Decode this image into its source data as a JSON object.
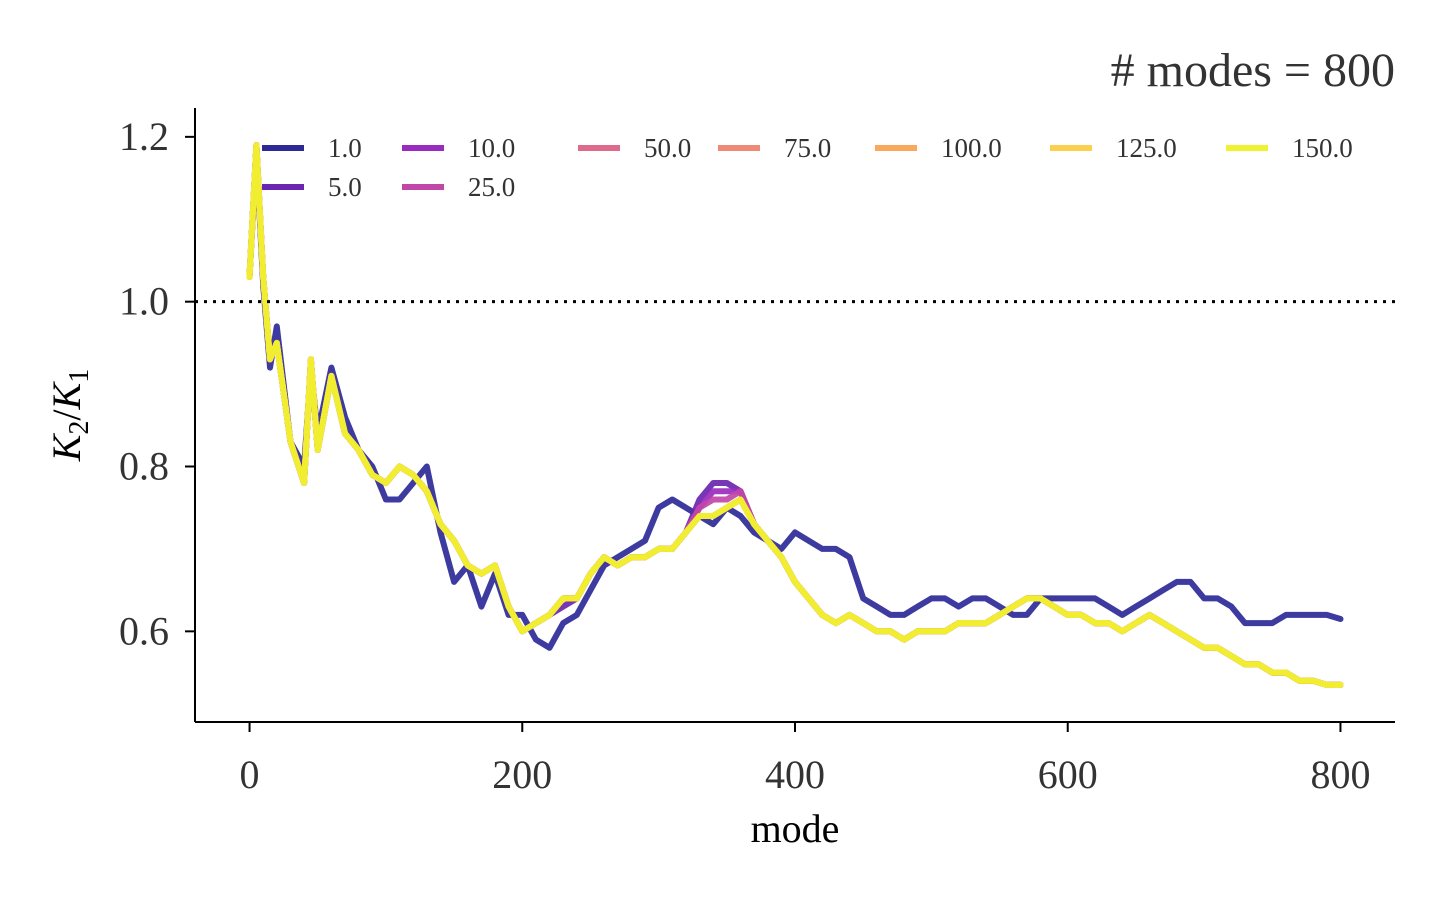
{
  "chart_data": {
    "type": "line",
    "title": "# modes = 800",
    "xlabel": "mode",
    "ylabel": "K_2/K_1",
    "ylabel_parts": {
      "k": "K",
      "sub2": "2",
      "slash": "/",
      "sub1": "1"
    },
    "xlim": [
      -40,
      840
    ],
    "ylim": [
      0.49,
      1.235
    ],
    "xticks": [
      0,
      200,
      400,
      600,
      800
    ],
    "xtick_labels": [
      "0",
      "200",
      "400",
      "600",
      "800"
    ],
    "yticks": [
      0.6,
      0.8,
      1.0,
      1.2
    ],
    "ytick_labels": [
      "0.6",
      "0.8",
      "1.0",
      "1.2"
    ],
    "reference_line": {
      "y": 1.0,
      "style": "dotted",
      "color": "#000000"
    },
    "legend_placement": "top, inside, 7 columns",
    "legend_columns": 7,
    "grid": false,
    "x": [
      0,
      5,
      10,
      15,
      20,
      30,
      40,
      45,
      50,
      60,
      70,
      80,
      90,
      100,
      110,
      120,
      130,
      140,
      150,
      160,
      170,
      180,
      190,
      200,
      210,
      220,
      230,
      240,
      250,
      260,
      270,
      280,
      290,
      300,
      310,
      320,
      330,
      340,
      350,
      360,
      370,
      380,
      390,
      400,
      410,
      420,
      430,
      440,
      450,
      460,
      470,
      480,
      490,
      500,
      510,
      520,
      530,
      540,
      550,
      560,
      570,
      580,
      590,
      600,
      610,
      620,
      630,
      640,
      650,
      660,
      670,
      680,
      690,
      700,
      710,
      720,
      730,
      740,
      750,
      760,
      770,
      780,
      790,
      800
    ],
    "series": [
      {
        "name": "1.0",
        "color": "#2d2a97",
        "values": [
          1.03,
          1.18,
          1.02,
          0.92,
          0.97,
          0.83,
          0.8,
          0.92,
          0.84,
          0.92,
          0.86,
          0.82,
          0.8,
          0.76,
          0.76,
          0.78,
          0.8,
          0.72,
          0.66,
          0.68,
          0.63,
          0.67,
          0.62,
          0.62,
          0.59,
          0.58,
          0.61,
          0.62,
          0.65,
          0.68,
          0.69,
          0.7,
          0.71,
          0.75,
          0.76,
          0.75,
          0.74,
          0.73,
          0.75,
          0.74,
          0.72,
          0.71,
          0.7,
          0.72,
          0.71,
          0.7,
          0.7,
          0.69,
          0.64,
          0.63,
          0.62,
          0.62,
          0.63,
          0.64,
          0.64,
          0.63,
          0.64,
          0.64,
          0.63,
          0.62,
          0.62,
          0.64,
          0.64,
          0.64,
          0.64,
          0.64,
          0.63,
          0.62,
          0.63,
          0.64,
          0.65,
          0.66,
          0.66,
          0.64,
          0.64,
          0.63,
          0.61,
          0.61,
          0.61,
          0.62,
          0.62,
          0.62,
          0.62,
          0.615
        ]
      },
      {
        "name": "5.0",
        "color": "#6a26b0",
        "values": [
          1.03,
          1.19,
          1.03,
          0.93,
          0.95,
          0.83,
          0.78,
          0.93,
          0.82,
          0.91,
          0.84,
          0.82,
          0.79,
          0.78,
          0.8,
          0.79,
          0.77,
          0.73,
          0.71,
          0.68,
          0.67,
          0.68,
          0.63,
          0.6,
          0.61,
          0.62,
          0.63,
          0.64,
          0.67,
          0.69,
          0.68,
          0.69,
          0.69,
          0.7,
          0.7,
          0.72,
          0.76,
          0.78,
          0.78,
          0.77,
          0.73,
          0.71,
          0.69,
          0.66,
          0.64,
          0.62,
          0.61,
          0.62,
          0.61,
          0.6,
          0.6,
          0.59,
          0.6,
          0.6,
          0.6,
          0.61,
          0.61,
          0.61,
          0.62,
          0.63,
          0.64,
          0.64,
          0.63,
          0.62,
          0.62,
          0.61,
          0.61,
          0.6,
          0.61,
          0.62,
          0.61,
          0.6,
          0.59,
          0.58,
          0.58,
          0.57,
          0.56,
          0.56,
          0.55,
          0.55,
          0.54,
          0.54,
          0.535,
          0.535
        ]
      },
      {
        "name": "10.0",
        "color": "#9a2bbf",
        "values": [
          1.03,
          1.19,
          1.03,
          0.93,
          0.95,
          0.83,
          0.78,
          0.93,
          0.82,
          0.91,
          0.84,
          0.82,
          0.79,
          0.78,
          0.8,
          0.79,
          0.77,
          0.73,
          0.71,
          0.68,
          0.67,
          0.68,
          0.63,
          0.6,
          0.61,
          0.62,
          0.64,
          0.64,
          0.67,
          0.69,
          0.68,
          0.69,
          0.69,
          0.7,
          0.7,
          0.72,
          0.75,
          0.77,
          0.77,
          0.77,
          0.73,
          0.71,
          0.69,
          0.66,
          0.64,
          0.62,
          0.61,
          0.62,
          0.61,
          0.6,
          0.6,
          0.59,
          0.6,
          0.6,
          0.6,
          0.61,
          0.61,
          0.61,
          0.62,
          0.63,
          0.64,
          0.64,
          0.63,
          0.62,
          0.62,
          0.61,
          0.61,
          0.6,
          0.61,
          0.62,
          0.61,
          0.6,
          0.59,
          0.58,
          0.58,
          0.57,
          0.56,
          0.56,
          0.55,
          0.55,
          0.54,
          0.54,
          0.535,
          0.535
        ]
      },
      {
        "name": "25.0",
        "color": "#c046a8",
        "values": [
          1.03,
          1.19,
          1.03,
          0.93,
          0.95,
          0.83,
          0.78,
          0.93,
          0.82,
          0.91,
          0.84,
          0.82,
          0.79,
          0.78,
          0.8,
          0.79,
          0.77,
          0.73,
          0.71,
          0.68,
          0.67,
          0.68,
          0.63,
          0.6,
          0.61,
          0.62,
          0.64,
          0.64,
          0.67,
          0.69,
          0.68,
          0.69,
          0.69,
          0.7,
          0.7,
          0.72,
          0.75,
          0.76,
          0.76,
          0.77,
          0.73,
          0.71,
          0.69,
          0.66,
          0.64,
          0.62,
          0.61,
          0.62,
          0.61,
          0.6,
          0.6,
          0.59,
          0.6,
          0.6,
          0.6,
          0.61,
          0.61,
          0.61,
          0.62,
          0.63,
          0.64,
          0.64,
          0.63,
          0.62,
          0.62,
          0.61,
          0.61,
          0.6,
          0.61,
          0.62,
          0.61,
          0.6,
          0.59,
          0.58,
          0.58,
          0.57,
          0.56,
          0.56,
          0.55,
          0.55,
          0.54,
          0.54,
          0.535,
          0.535
        ]
      },
      {
        "name": "50.0",
        "color": "#de6a8c",
        "values": [
          1.03,
          1.19,
          1.03,
          0.93,
          0.95,
          0.83,
          0.78,
          0.93,
          0.82,
          0.91,
          0.84,
          0.82,
          0.79,
          0.78,
          0.8,
          0.79,
          0.77,
          0.73,
          0.71,
          0.68,
          0.67,
          0.68,
          0.63,
          0.6,
          0.61,
          0.62,
          0.64,
          0.64,
          0.67,
          0.69,
          0.68,
          0.69,
          0.69,
          0.7,
          0.7,
          0.72,
          0.74,
          0.74,
          0.75,
          0.76,
          0.73,
          0.71,
          0.69,
          0.66,
          0.64,
          0.62,
          0.61,
          0.62,
          0.61,
          0.6,
          0.6,
          0.59,
          0.6,
          0.6,
          0.6,
          0.61,
          0.61,
          0.61,
          0.62,
          0.63,
          0.64,
          0.64,
          0.63,
          0.62,
          0.62,
          0.61,
          0.61,
          0.6,
          0.61,
          0.62,
          0.61,
          0.6,
          0.59,
          0.58,
          0.58,
          0.57,
          0.56,
          0.56,
          0.55,
          0.55,
          0.54,
          0.54,
          0.535,
          0.535
        ]
      },
      {
        "name": "75.0",
        "color": "#f08a78",
        "values": [
          1.03,
          1.19,
          1.03,
          0.93,
          0.95,
          0.83,
          0.78,
          0.93,
          0.82,
          0.91,
          0.84,
          0.82,
          0.79,
          0.78,
          0.8,
          0.79,
          0.77,
          0.73,
          0.71,
          0.68,
          0.67,
          0.68,
          0.63,
          0.6,
          0.61,
          0.62,
          0.64,
          0.64,
          0.67,
          0.69,
          0.68,
          0.69,
          0.69,
          0.7,
          0.7,
          0.72,
          0.74,
          0.74,
          0.75,
          0.76,
          0.73,
          0.71,
          0.69,
          0.66,
          0.64,
          0.62,
          0.61,
          0.62,
          0.61,
          0.6,
          0.6,
          0.59,
          0.6,
          0.6,
          0.6,
          0.61,
          0.61,
          0.61,
          0.62,
          0.63,
          0.64,
          0.64,
          0.63,
          0.62,
          0.62,
          0.61,
          0.61,
          0.6,
          0.61,
          0.62,
          0.61,
          0.6,
          0.59,
          0.58,
          0.58,
          0.57,
          0.56,
          0.56,
          0.55,
          0.55,
          0.54,
          0.54,
          0.535,
          0.535
        ]
      },
      {
        "name": "100.0",
        "color": "#f9a85e",
        "values": [
          1.03,
          1.19,
          1.03,
          0.93,
          0.95,
          0.83,
          0.78,
          0.93,
          0.82,
          0.91,
          0.84,
          0.82,
          0.79,
          0.78,
          0.8,
          0.79,
          0.77,
          0.73,
          0.71,
          0.68,
          0.67,
          0.68,
          0.63,
          0.6,
          0.61,
          0.62,
          0.64,
          0.64,
          0.67,
          0.69,
          0.68,
          0.69,
          0.69,
          0.7,
          0.7,
          0.72,
          0.74,
          0.74,
          0.75,
          0.76,
          0.73,
          0.71,
          0.69,
          0.66,
          0.64,
          0.62,
          0.61,
          0.62,
          0.61,
          0.6,
          0.6,
          0.59,
          0.6,
          0.6,
          0.6,
          0.61,
          0.61,
          0.61,
          0.62,
          0.63,
          0.64,
          0.64,
          0.63,
          0.62,
          0.62,
          0.61,
          0.61,
          0.6,
          0.61,
          0.62,
          0.61,
          0.6,
          0.59,
          0.58,
          0.58,
          0.57,
          0.56,
          0.56,
          0.55,
          0.55,
          0.54,
          0.54,
          0.535,
          0.535
        ]
      },
      {
        "name": "125.0",
        "color": "#fccf4f",
        "values": [
          1.03,
          1.19,
          1.03,
          0.93,
          0.95,
          0.83,
          0.78,
          0.93,
          0.82,
          0.91,
          0.84,
          0.82,
          0.79,
          0.78,
          0.8,
          0.79,
          0.77,
          0.73,
          0.71,
          0.68,
          0.67,
          0.68,
          0.63,
          0.6,
          0.61,
          0.62,
          0.64,
          0.64,
          0.67,
          0.69,
          0.68,
          0.69,
          0.69,
          0.7,
          0.7,
          0.72,
          0.74,
          0.74,
          0.75,
          0.76,
          0.73,
          0.71,
          0.69,
          0.66,
          0.64,
          0.62,
          0.61,
          0.62,
          0.61,
          0.6,
          0.6,
          0.59,
          0.6,
          0.6,
          0.6,
          0.61,
          0.61,
          0.61,
          0.62,
          0.63,
          0.64,
          0.64,
          0.63,
          0.62,
          0.62,
          0.61,
          0.61,
          0.6,
          0.61,
          0.62,
          0.61,
          0.6,
          0.59,
          0.58,
          0.58,
          0.57,
          0.56,
          0.56,
          0.55,
          0.55,
          0.54,
          0.54,
          0.535,
          0.535
        ]
      },
      {
        "name": "150.0",
        "color": "#f0f12f",
        "values": [
          1.03,
          1.19,
          1.03,
          0.93,
          0.95,
          0.83,
          0.78,
          0.93,
          0.82,
          0.91,
          0.84,
          0.82,
          0.79,
          0.78,
          0.8,
          0.79,
          0.77,
          0.73,
          0.71,
          0.68,
          0.67,
          0.68,
          0.63,
          0.6,
          0.61,
          0.62,
          0.64,
          0.64,
          0.67,
          0.69,
          0.68,
          0.69,
          0.69,
          0.7,
          0.7,
          0.72,
          0.74,
          0.74,
          0.75,
          0.76,
          0.73,
          0.71,
          0.69,
          0.66,
          0.64,
          0.62,
          0.61,
          0.62,
          0.61,
          0.6,
          0.6,
          0.59,
          0.6,
          0.6,
          0.6,
          0.61,
          0.61,
          0.61,
          0.62,
          0.63,
          0.64,
          0.64,
          0.63,
          0.62,
          0.62,
          0.61,
          0.61,
          0.6,
          0.61,
          0.62,
          0.61,
          0.6,
          0.59,
          0.58,
          0.58,
          0.57,
          0.56,
          0.56,
          0.55,
          0.55,
          0.54,
          0.54,
          0.535,
          0.535
        ]
      }
    ]
  }
}
